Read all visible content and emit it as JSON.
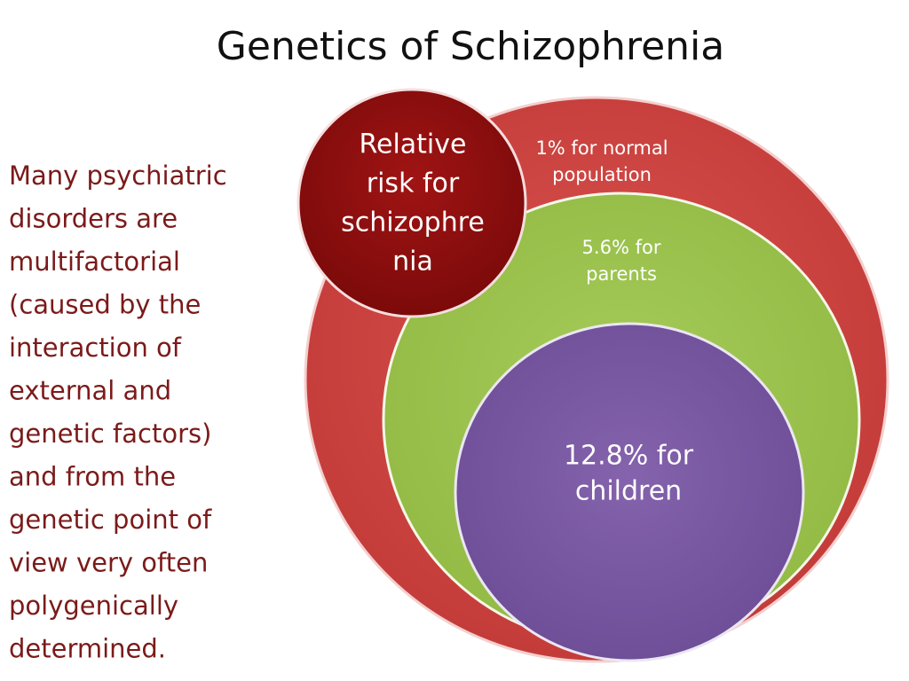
{
  "header": {
    "title": "Genetics of Schizophrenia"
  },
  "body_text": {
    "lines": [
      "Many psychiatric",
      "disorders are",
      "multifactorial",
      "(caused by the",
      "interaction of",
      "external and",
      "genetic factors)",
      "and from the",
      "genetic point of",
      "view very often",
      "polygenically",
      "determined."
    ]
  },
  "diagram": {
    "label_circle": {
      "lines": [
        "Relative",
        "risk for",
        "schizophre",
        "nia"
      ]
    },
    "outer_circle": {
      "lines": [
        "1% for normal",
        "population"
      ]
    },
    "middle_circle": {
      "lines": [
        "5.6% for",
        "parents"
      ]
    },
    "inner_circle": {
      "lines": [
        "12.8% for",
        "children"
      ]
    }
  }
}
